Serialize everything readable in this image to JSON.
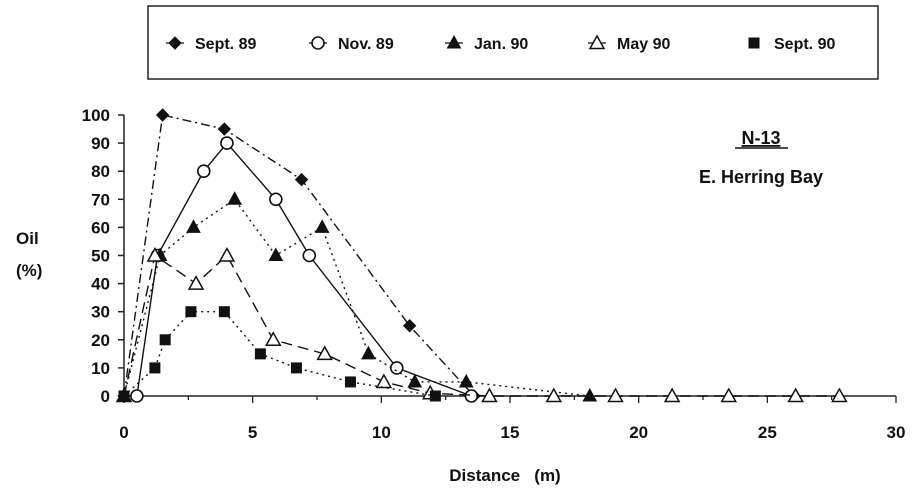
{
  "chart_data": {
    "type": "line",
    "title": "",
    "xlabel": "Distance   (m)",
    "ylabel_lines": [
      "Oil",
      "(%)"
    ],
    "xlim": [
      0,
      30
    ],
    "ylim": [
      0,
      100
    ],
    "x_ticks": [
      0,
      5,
      10,
      15,
      20,
      25,
      30
    ],
    "y_ticks": [
      0,
      10,
      20,
      30,
      40,
      50,
      60,
      70,
      80,
      90,
      100
    ],
    "grid": false,
    "legend_position": "top",
    "annotation": {
      "station": "N-13",
      "location": "E. Herring Bay"
    },
    "series": [
      {
        "name": "Sept. 89",
        "marker": "filled-diamond",
        "line": "dash-dot",
        "x": [
          0,
          1.5,
          3.9,
          6.9,
          11.1,
          13.6
        ],
        "y": [
          0,
          100,
          95,
          77,
          25,
          0
        ]
      },
      {
        "name": "Nov. 89",
        "marker": "open-circle",
        "line": "solid",
        "x": [
          0.5,
          1.3,
          3.1,
          4.0,
          5.9,
          7.2,
          10.6,
          13.5
        ],
        "y": [
          0,
          50,
          80,
          90,
          70,
          50,
          10,
          0
        ]
      },
      {
        "name": "Jan. 90",
        "marker": "filled-triangle",
        "line": "dotted",
        "x": [
          0,
          1.4,
          2.7,
          4.3,
          5.9,
          7.7,
          9.5,
          11.3,
          13.3,
          18.1
        ],
        "y": [
          0,
          50,
          60,
          70,
          50,
          60,
          15,
          5,
          5,
          0
        ]
      },
      {
        "name": "May 90",
        "marker": "open-triangle",
        "line": "dashed",
        "x": [
          0,
          1.2,
          2.8,
          4.0,
          5.8,
          7.8,
          10.1,
          11.9,
          14.2,
          16.7,
          19.1,
          21.3,
          23.5,
          26.1,
          27.8
        ],
        "y": [
          0,
          50,
          40,
          50,
          20,
          15,
          5,
          1,
          0,
          0,
          0,
          0,
          0,
          0,
          0
        ]
      },
      {
        "name": "Sept. 90",
        "marker": "filled-square",
        "line": "dotted",
        "x": [
          0,
          1.2,
          1.6,
          2.6,
          3.9,
          5.3,
          6.7,
          8.8,
          12.1
        ],
        "y": [
          0,
          10,
          20,
          30,
          30,
          15,
          10,
          5,
          0
        ]
      }
    ]
  }
}
